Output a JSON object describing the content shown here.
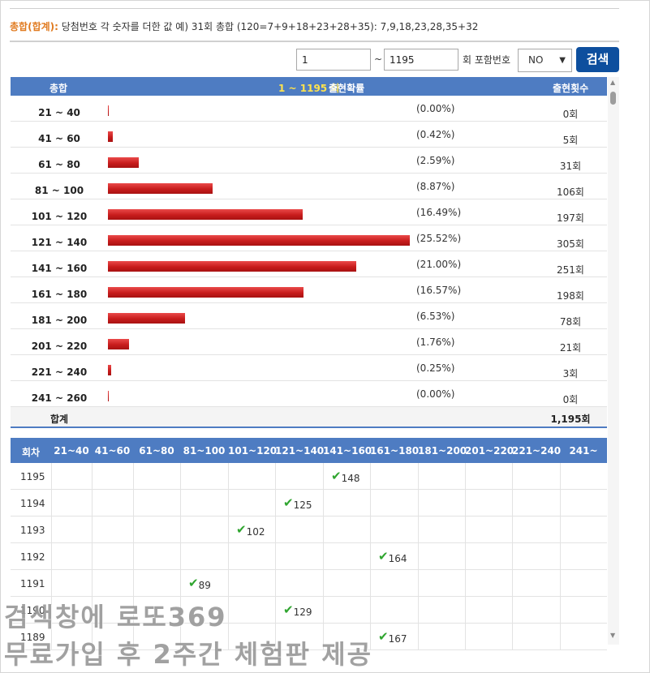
{
  "info": {
    "label": "총합(합계):",
    "text": "당첨번호 각 숫자를 더한 값 예) 31회 총합 (120=7+9+18+23+28+35): 7,9,18,23,28,35+32"
  },
  "controls": {
    "from_value": "1",
    "tilde": "~",
    "to_value": "1195",
    "include_label": "회 포함번호",
    "include_selected": "NO",
    "search_label": "검색"
  },
  "freq_table": {
    "headers": {
      "sum": "총합",
      "range_label": "1 ~ 1195 회",
      "prob": "출현확률",
      "count": "출현횟수"
    },
    "rows": [
      {
        "range": "21 ~ 40",
        "pct": "(0.00%)",
        "count": "0회",
        "value": 0
      },
      {
        "range": "41 ~ 60",
        "pct": "(0.42%)",
        "count": "5회",
        "value": 5
      },
      {
        "range": "61 ~ 80",
        "pct": "(2.59%)",
        "count": "31회",
        "value": 31
      },
      {
        "range": "81 ~ 100",
        "pct": "(8.87%)",
        "count": "106회",
        "value": 106
      },
      {
        "range": "101 ~ 120",
        "pct": "(16.49%)",
        "count": "197회",
        "value": 197
      },
      {
        "range": "121 ~ 140",
        "pct": "(25.52%)",
        "count": "305회",
        "value": 305
      },
      {
        "range": "141 ~ 160",
        "pct": "(21.00%)",
        "count": "251회",
        "value": 251
      },
      {
        "range": "161 ~ 180",
        "pct": "(16.57%)",
        "count": "198회",
        "value": 198
      },
      {
        "range": "181 ~ 200",
        "pct": "(6.53%)",
        "count": "78회",
        "value": 78
      },
      {
        "range": "201 ~ 220",
        "pct": "(1.76%)",
        "count": "21회",
        "value": 21
      },
      {
        "range": "221 ~ 240",
        "pct": "(0.25%)",
        "count": "3회",
        "value": 3
      },
      {
        "range": "241 ~ 260",
        "pct": "(0.00%)",
        "count": "0회",
        "value": 0
      }
    ],
    "total_label": "합계",
    "total_value": "1,195회"
  },
  "draw_table": {
    "headers": [
      "회차",
      "21~40",
      "41~60",
      "61~80",
      "81~100",
      "101~120",
      "121~140",
      "141~160",
      "161~180",
      "181~200",
      "201~220",
      "221~240",
      "241~"
    ],
    "rows": [
      {
        "draw": "1195",
        "col": 7,
        "sum": "148"
      },
      {
        "draw": "1194",
        "col": 6,
        "sum": "125"
      },
      {
        "draw": "1193",
        "col": 5,
        "sum": "102"
      },
      {
        "draw": "1192",
        "col": 8,
        "sum": "164"
      },
      {
        "draw": "1191",
        "col": 4,
        "sum": "89"
      },
      {
        "draw": "1190",
        "col": 6,
        "sum": "129"
      },
      {
        "draw": "1189",
        "col": 8,
        "sum": "167"
      }
    ]
  },
  "watermark": {
    "line1": "검색창에 로또369",
    "line2": "무료가입 후 2주간 체험판 제공"
  },
  "colors": {
    "header_blue": "#4e7cc2",
    "button_blue": "#0e4f9e",
    "bar_red": "#d42424",
    "label_orange": "#e07a1f",
    "check_green": "#2fa52f"
  }
}
